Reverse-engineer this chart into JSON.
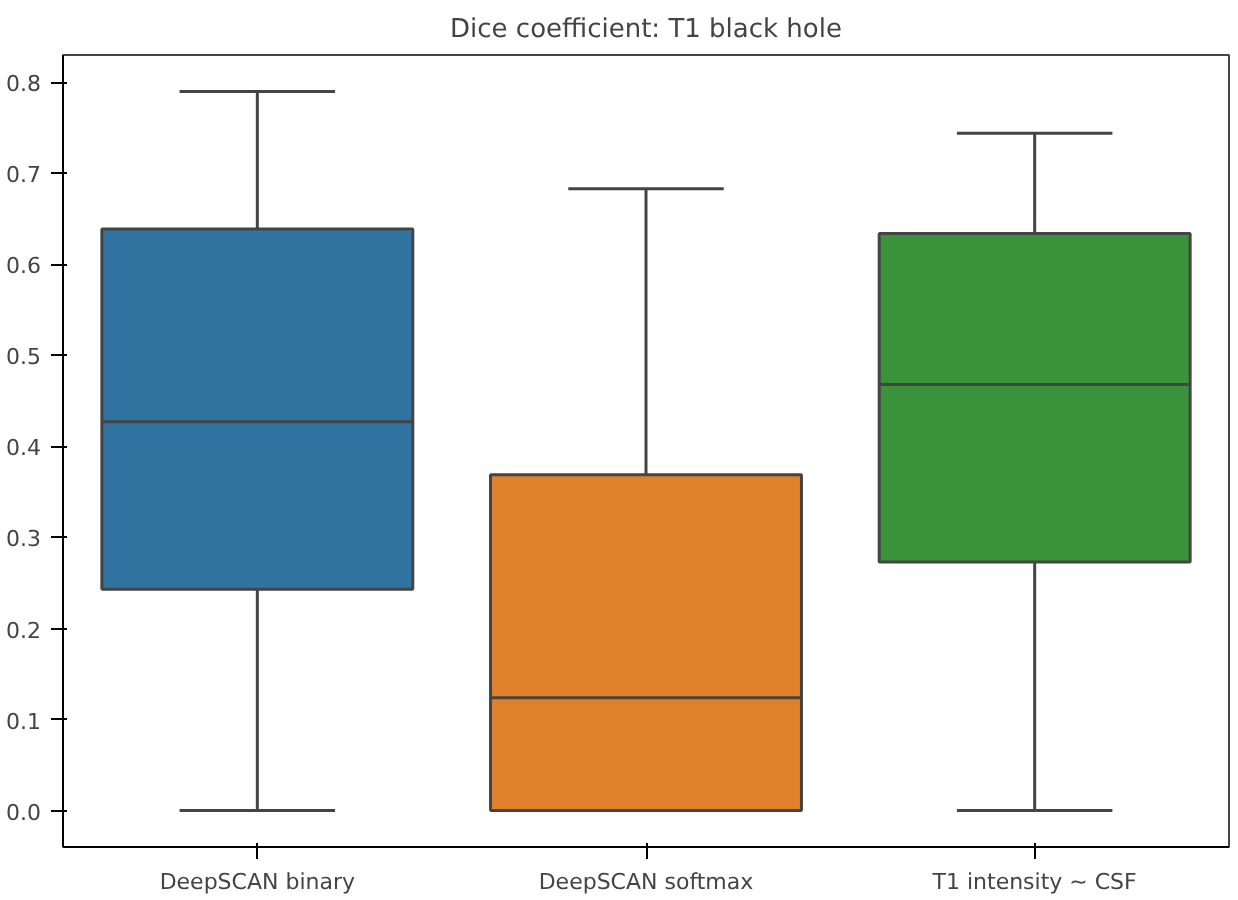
{
  "chart_data": {
    "type": "box",
    "title": "Dice coefficient: T1 black hole",
    "categories": [
      "DeepSCAN binary",
      "DeepSCAN softmax",
      "T1 intensity ~ CSF"
    ],
    "colors": [
      "#3274a1",
      "#e1812c",
      "#3a923a"
    ],
    "boxes": [
      {
        "low": 0.0,
        "q1": 0.243,
        "median": 0.427,
        "q3": 0.639,
        "high": 0.79
      },
      {
        "low": 0.0,
        "q1": 0.0,
        "median": 0.124,
        "q3": 0.369,
        "high": 0.683
      },
      {
        "low": 0.0,
        "q1": 0.273,
        "median": 0.468,
        "q3": 0.634,
        "high": 0.744
      }
    ],
    "ylim": [
      -0.04,
      0.83
    ],
    "yticks": [
      {
        "value": 0,
        "label": "0.0"
      },
      0.1,
      0.2,
      0.3,
      0.4,
      0.5,
      0.6,
      0.7,
      0.8
    ],
    "grid": false
  }
}
